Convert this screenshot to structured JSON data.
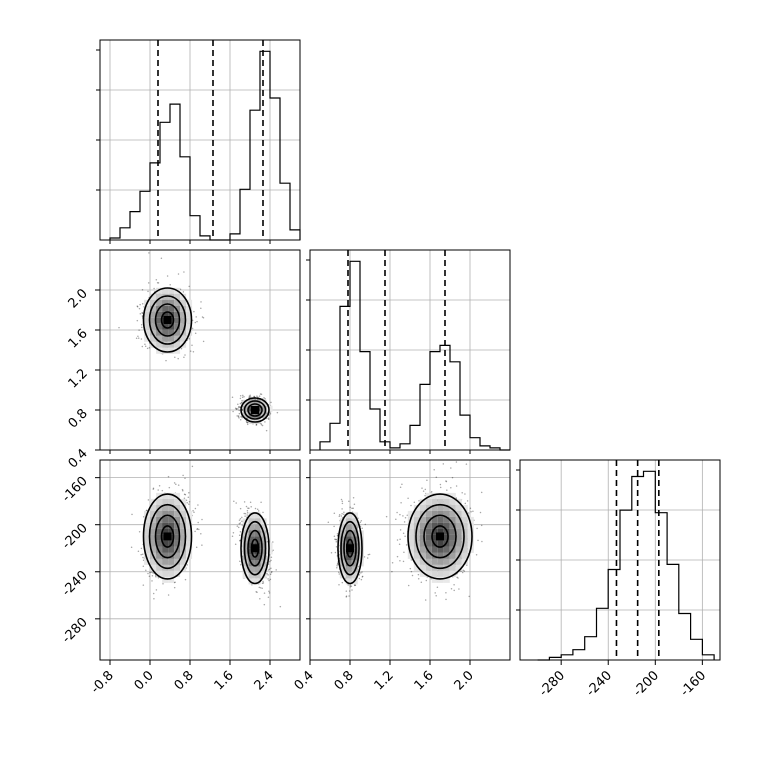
{
  "chart_data": {
    "type": "corner",
    "parameters": [
      "",
      "",
      ""
    ],
    "ranges": {
      "p0": [
        -1.0,
        3.0
      ],
      "p1": [
        0.4,
        2.4
      ],
      "p2": [
        -315,
        -145
      ]
    },
    "ticks": {
      "p0": [
        "-0.8",
        "0.0",
        "0.8",
        "1.6",
        "2.4"
      ],
      "p0_values": [
        -0.8,
        0.0,
        0.8,
        1.6,
        2.4
      ],
      "p1": [
        "0.4",
        "0.8",
        "1.2",
        "1.6",
        "2.0"
      ],
      "p1_values": [
        0.4,
        0.8,
        1.2,
        1.6,
        2.0
      ],
      "p2": [
        "-280",
        "-240",
        "-200",
        "-160"
      ],
      "p2_values": [
        -280,
        -240,
        -200,
        -160
      ]
    },
    "quantiles": {
      "p0": [
        0.16,
        1.26,
        2.26
      ],
      "p1": [
        0.78,
        1.15,
        1.75
      ],
      "p2": [
        -233,
        -215,
        -197
      ]
    },
    "histograms": {
      "p0": {
        "edges": [
          -0.8,
          -0.6,
          -0.4,
          -0.2,
          0.0,
          0.2,
          0.4,
          0.6,
          0.8,
          1.0,
          1.2,
          1.4,
          1.6,
          1.8,
          2.0,
          2.2,
          2.4,
          2.6,
          2.8,
          3.0
        ],
        "counts": [
          1,
          6,
          14,
          24,
          38,
          58,
          67,
          41,
          12,
          2,
          0,
          0,
          3,
          25,
          64,
          93,
          70,
          28,
          5
        ]
      },
      "p1": {
        "edges": [
          0.5,
          0.6,
          0.7,
          0.8,
          0.9,
          1.0,
          1.1,
          1.2,
          1.3,
          1.4,
          1.5,
          1.6,
          1.7,
          1.8,
          1.9,
          2.0,
          2.1,
          2.2,
          2.3,
          2.4
        ],
        "counts": [
          4,
          13,
          70,
          92,
          48,
          20,
          4,
          1,
          3,
          12,
          32,
          48,
          51,
          43,
          17,
          6,
          2,
          1,
          0
        ]
      },
      "p2": {
        "edges": [
          -300,
          -290,
          -280,
          -270,
          -260,
          -250,
          -240,
          -230,
          -220,
          -210,
          -200,
          -190,
          -180,
          -170,
          -160,
          -150
        ],
        "counts": [
          0,
          1,
          2,
          4,
          9,
          20,
          35,
          58,
          71,
          73,
          57,
          37,
          18,
          8,
          2
        ]
      }
    },
    "clusters": [
      {
        "p0": 0.35,
        "p1": 1.7,
        "p2": -210,
        "s0": 0.24,
        "s1": 0.16,
        "s2": 18
      },
      {
        "p0": 2.1,
        "p1": 0.8,
        "p2": -220,
        "s0": 0.14,
        "s1": 0.06,
        "s2": 15
      }
    ],
    "grid": true
  }
}
